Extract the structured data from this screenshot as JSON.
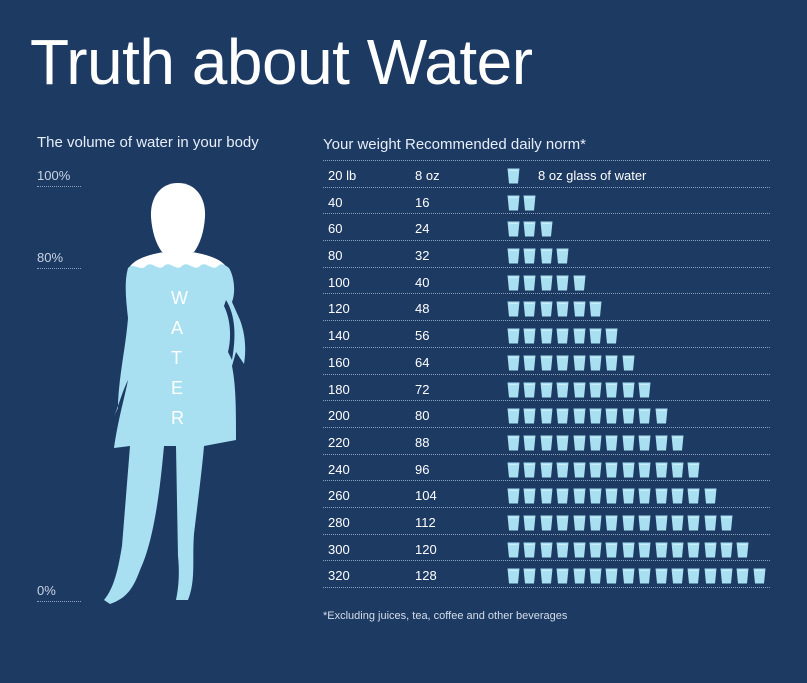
{
  "title": "Truth about Water",
  "left_heading": "The volume of water in your body",
  "percent_labels": [
    "100%",
    "80%",
    "0%"
  ],
  "water_letters": [
    "W",
    "A",
    "T",
    "E",
    "R"
  ],
  "right_heading": "Your weight Recommended daily norm*",
  "legend": "8 oz glass of water",
  "rows": [
    {
      "weight": "20 lb",
      "norm": "8 oz",
      "glasses": 1
    },
    {
      "weight": "40",
      "norm": "16",
      "glasses": 2
    },
    {
      "weight": "60",
      "norm": "24",
      "glasses": 3
    },
    {
      "weight": "80",
      "norm": "32",
      "glasses": 4
    },
    {
      "weight": "100",
      "norm": "40",
      "glasses": 5
    },
    {
      "weight": "120",
      "norm": "48",
      "glasses": 6
    },
    {
      "weight": "140",
      "norm": "56",
      "glasses": 7
    },
    {
      "weight": "160",
      "norm": "64",
      "glasses": 8
    },
    {
      "weight": "180",
      "norm": "72",
      "glasses": 9
    },
    {
      "weight": "200",
      "norm": "80",
      "glasses": 10
    },
    {
      "weight": "220",
      "norm": "88",
      "glasses": 11
    },
    {
      "weight": "240",
      "norm": "96",
      "glasses": 12
    },
    {
      "weight": "260",
      "norm": "104",
      "glasses": 13
    },
    {
      "weight": "280",
      "norm": "112",
      "glasses": 14
    },
    {
      "weight": "300",
      "norm": "120",
      "glasses": 15
    },
    {
      "weight": "320",
      "norm": "128",
      "glasses": 16
    }
  ],
  "footnote": "*Excluding juices, tea, coffee and other beverages",
  "colors": {
    "background": "#1d3a63",
    "water": "#a8e0f2",
    "body_white": "#ffffff",
    "glass": "#a8e0f2"
  }
}
